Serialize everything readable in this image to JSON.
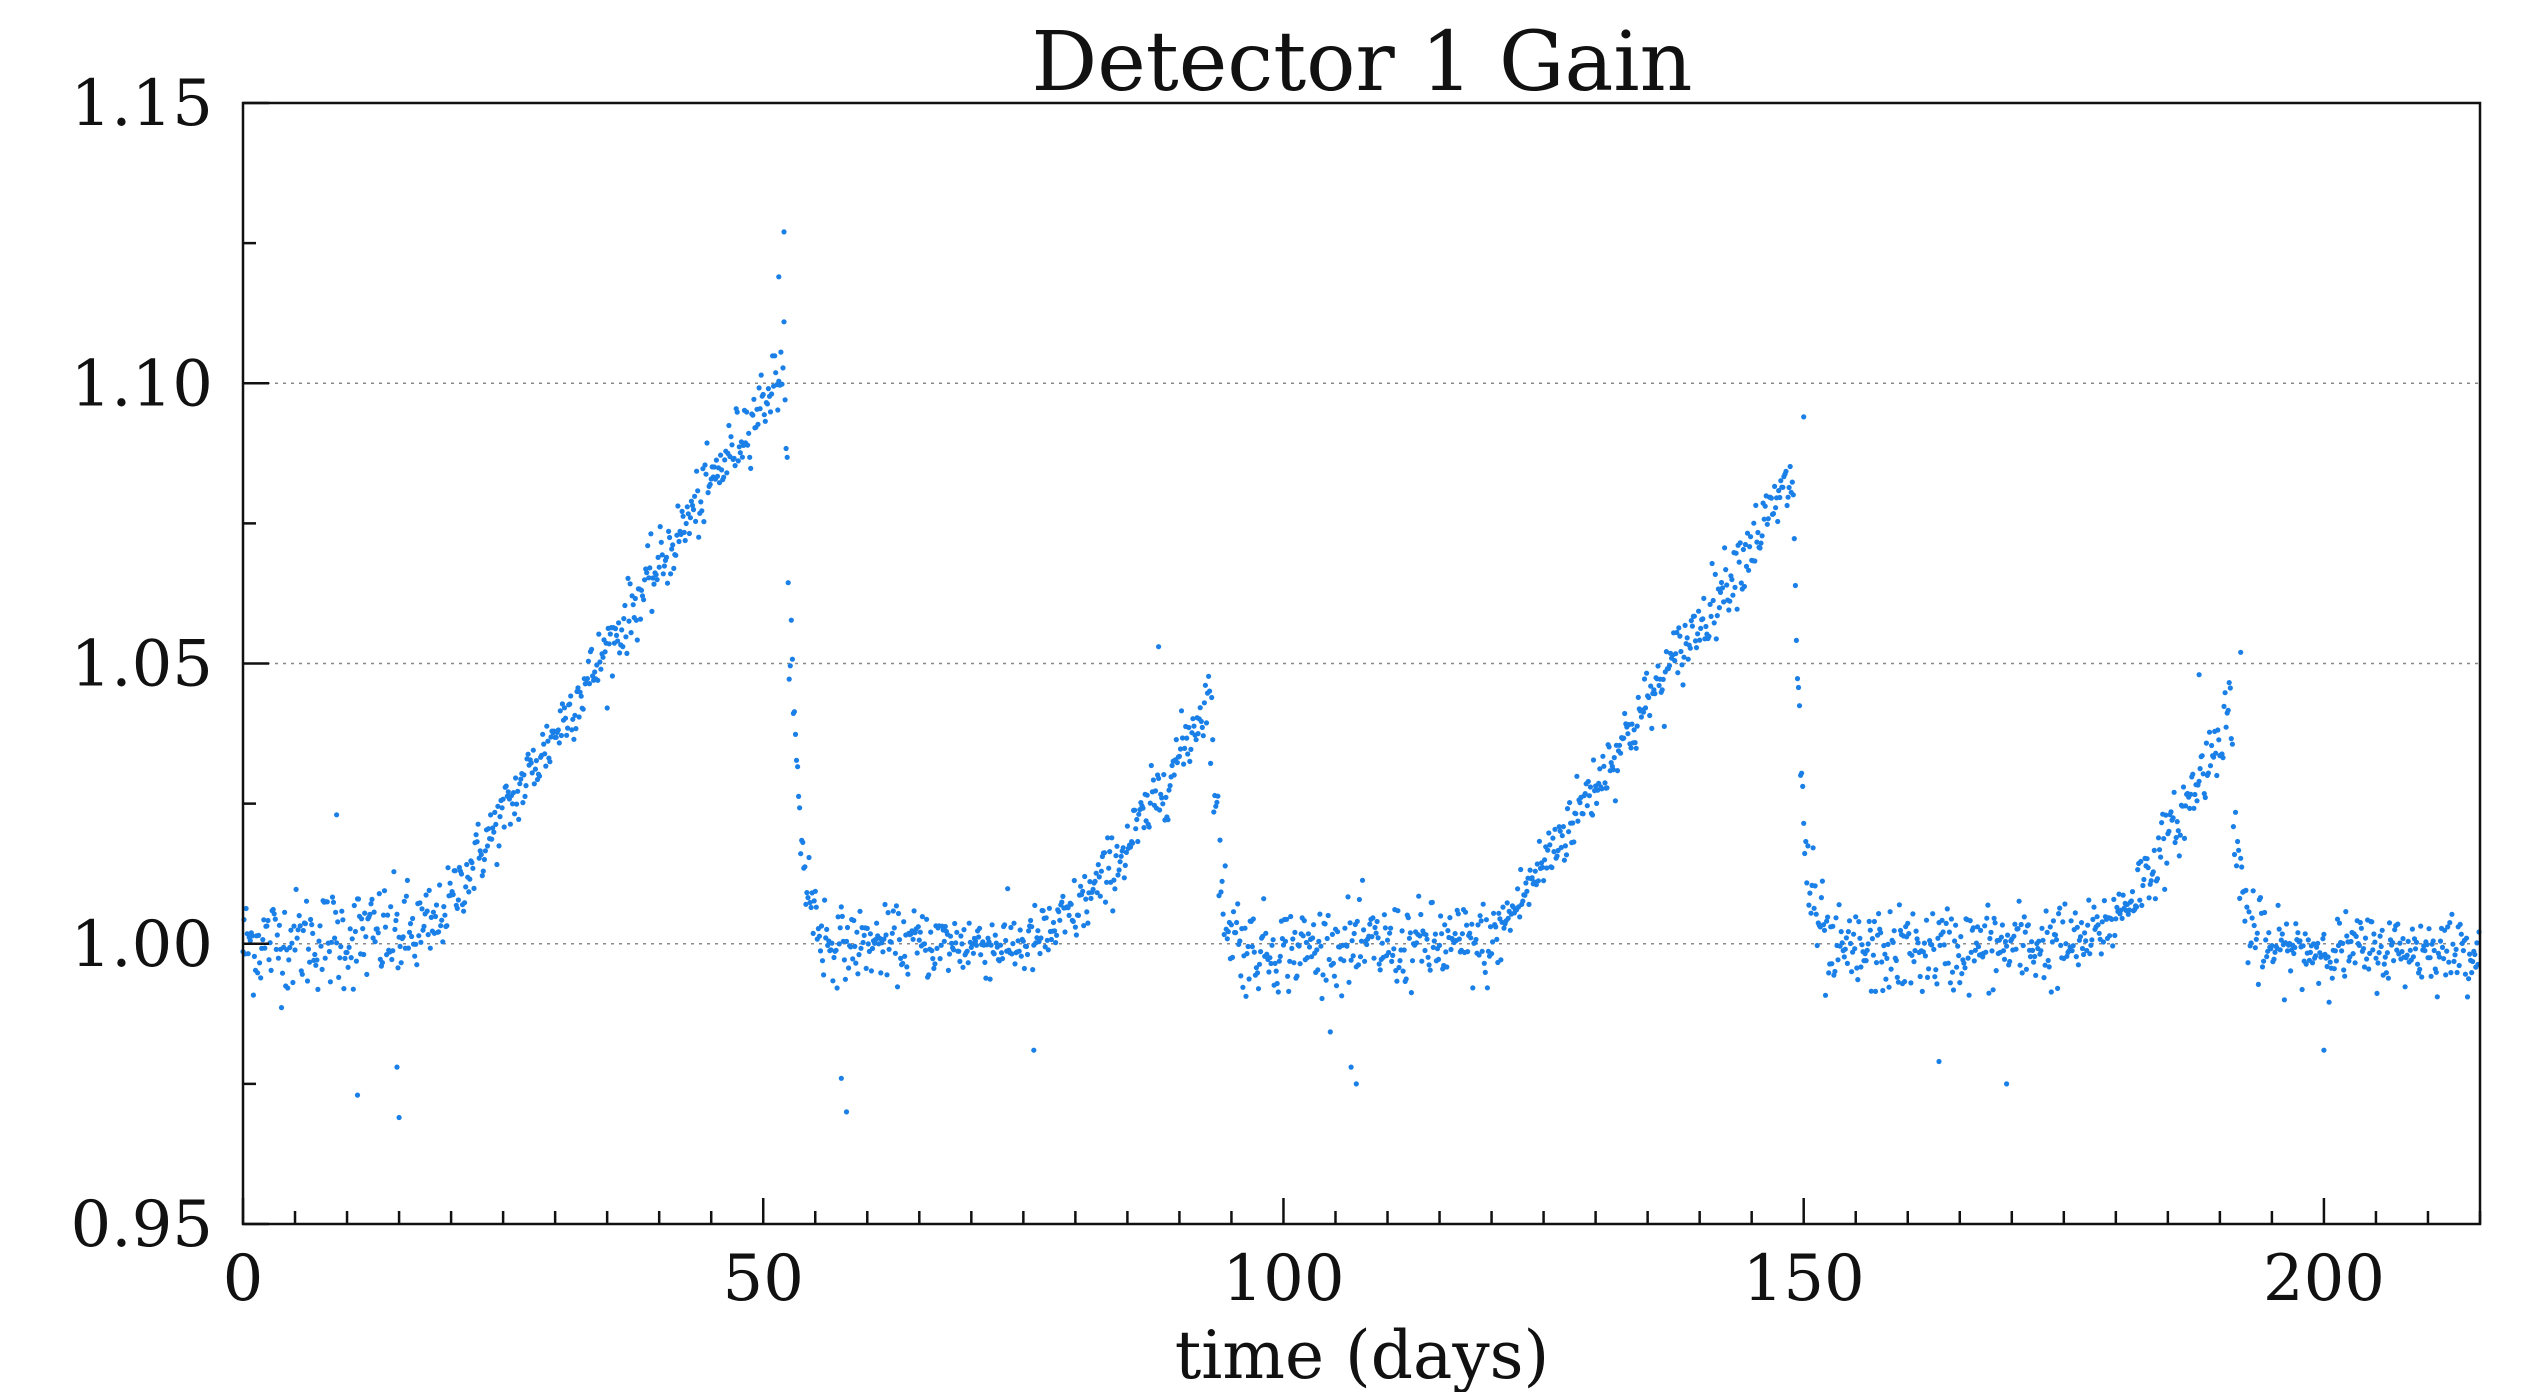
{
  "chart_data": {
    "type": "scatter",
    "title": "Detector 1 Gain",
    "xlabel": "time (days)",
    "ylabel": "",
    "xlim": [
      0,
      215
    ],
    "ylim": [
      0.95,
      1.15
    ],
    "xticks": [
      0,
      50,
      100,
      150,
      200
    ],
    "xtick_labels": [
      "0",
      "50",
      "100",
      "150",
      "200"
    ],
    "xminor_step": 5,
    "yticks": [
      0.95,
      1.0,
      1.05,
      1.1,
      1.15
    ],
    "ytick_labels": [
      "0.95",
      "1.00",
      "1.05",
      "1.10",
      "1.15"
    ],
    "yminor_step": 0.025,
    "grid_y": [
      1.0,
      1.05,
      1.1
    ],
    "point_color": "#1a7fe6",
    "sampling_interval_days": 0.1,
    "series": [
      {
        "name": "gain",
        "segments": [
          {
            "t_start": 0,
            "t_end": 18,
            "gain_start": 1.0,
            "gain_end": 1.002,
            "scatter": 0.006,
            "shape": "flat"
          },
          {
            "t_start": 18,
            "t_end": 52,
            "gain_start": 1.002,
            "gain_end": 1.103,
            "scatter": 0.004,
            "shape": "linear"
          },
          {
            "t_start": 52,
            "t_end": 56,
            "gain_start": 1.103,
            "gain_end": 1.0,
            "scatter": 0.006,
            "shape": "decay"
          },
          {
            "t_start": 56,
            "t_end": 75,
            "gain_start": 1.0,
            "gain_end": 1.0,
            "scatter": 0.004,
            "shape": "flat"
          },
          {
            "t_start": 75,
            "t_end": 93,
            "gain_start": 1.0,
            "gain_end": 1.045,
            "scatter": 0.004,
            "shape": "rising"
          },
          {
            "t_start": 93,
            "t_end": 96,
            "gain_start": 1.045,
            "gain_end": 1.0,
            "scatter": 0.006,
            "shape": "decay"
          },
          {
            "t_start": 96,
            "t_end": 120,
            "gain_start": 0.999,
            "gain_end": 1.0,
            "scatter": 0.005,
            "shape": "flat"
          },
          {
            "t_start": 120,
            "t_end": 149,
            "gain_start": 1.0,
            "gain_end": 1.083,
            "scatter": 0.004,
            "shape": "linear"
          },
          {
            "t_start": 149,
            "t_end": 152,
            "gain_start": 1.083,
            "gain_end": 1.0,
            "scatter": 0.006,
            "shape": "decay"
          },
          {
            "t_start": 152,
            "t_end": 176,
            "gain_start": 0.998,
            "gain_end": 1.0,
            "scatter": 0.005,
            "shape": "flat"
          },
          {
            "t_start": 176,
            "t_end": 191,
            "gain_start": 1.0,
            "gain_end": 1.042,
            "scatter": 0.004,
            "shape": "rising"
          },
          {
            "t_start": 191,
            "t_end": 194,
            "gain_start": 1.042,
            "gain_end": 1.0,
            "scatter": 0.006,
            "shape": "decay"
          },
          {
            "t_start": 194,
            "t_end": 215,
            "gain_start": 0.999,
            "gain_end": 0.999,
            "scatter": 0.004,
            "shape": "flat"
          }
        ],
        "outliers": [
          {
            "t": 52.0,
            "gain": 1.127
          },
          {
            "t": 51.5,
            "gain": 1.119
          },
          {
            "t": 11.0,
            "gain": 0.973
          },
          {
            "t": 15.0,
            "gain": 0.969
          },
          {
            "t": 14.8,
            "gain": 0.978
          },
          {
            "t": 9.0,
            "gain": 1.023
          },
          {
            "t": 58.0,
            "gain": 0.97
          },
          {
            "t": 57.5,
            "gain": 0.976
          },
          {
            "t": 88.0,
            "gain": 1.053
          },
          {
            "t": 76.0,
            "gain": 0.981
          },
          {
            "t": 107.0,
            "gain": 0.975
          },
          {
            "t": 106.5,
            "gain": 0.978
          },
          {
            "t": 150.0,
            "gain": 1.094
          },
          {
            "t": 163.0,
            "gain": 0.979
          },
          {
            "t": 169.5,
            "gain": 0.975
          },
          {
            "t": 192.0,
            "gain": 1.052
          },
          {
            "t": 200.0,
            "gain": 0.981
          },
          {
            "t": 188.0,
            "gain": 1.048
          }
        ]
      }
    ]
  }
}
